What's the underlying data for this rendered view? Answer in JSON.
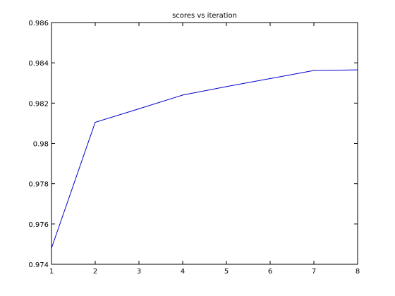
{
  "chart_data": {
    "type": "line",
    "title": "scores vs iteration",
    "xlabel": "",
    "ylabel": "",
    "xlim": [
      1,
      8
    ],
    "ylim": [
      0.974,
      0.986
    ],
    "x_ticks": [
      "1",
      "2",
      "3",
      "4",
      "5",
      "6",
      "7",
      "8"
    ],
    "y_ticks": [
      "0.974",
      "0.976",
      "0.978",
      "0.98",
      "0.982",
      "0.984",
      "0.986"
    ],
    "grid": false,
    "series": [
      {
        "color": "#0000cc",
        "x": [
          1,
          2,
          3,
          4,
          5,
          6,
          7,
          8
        ],
        "y": [
          0.9748,
          0.98105,
          0.98172,
          0.9824,
          0.98282,
          0.98322,
          0.98362,
          0.98365
        ]
      }
    ]
  }
}
